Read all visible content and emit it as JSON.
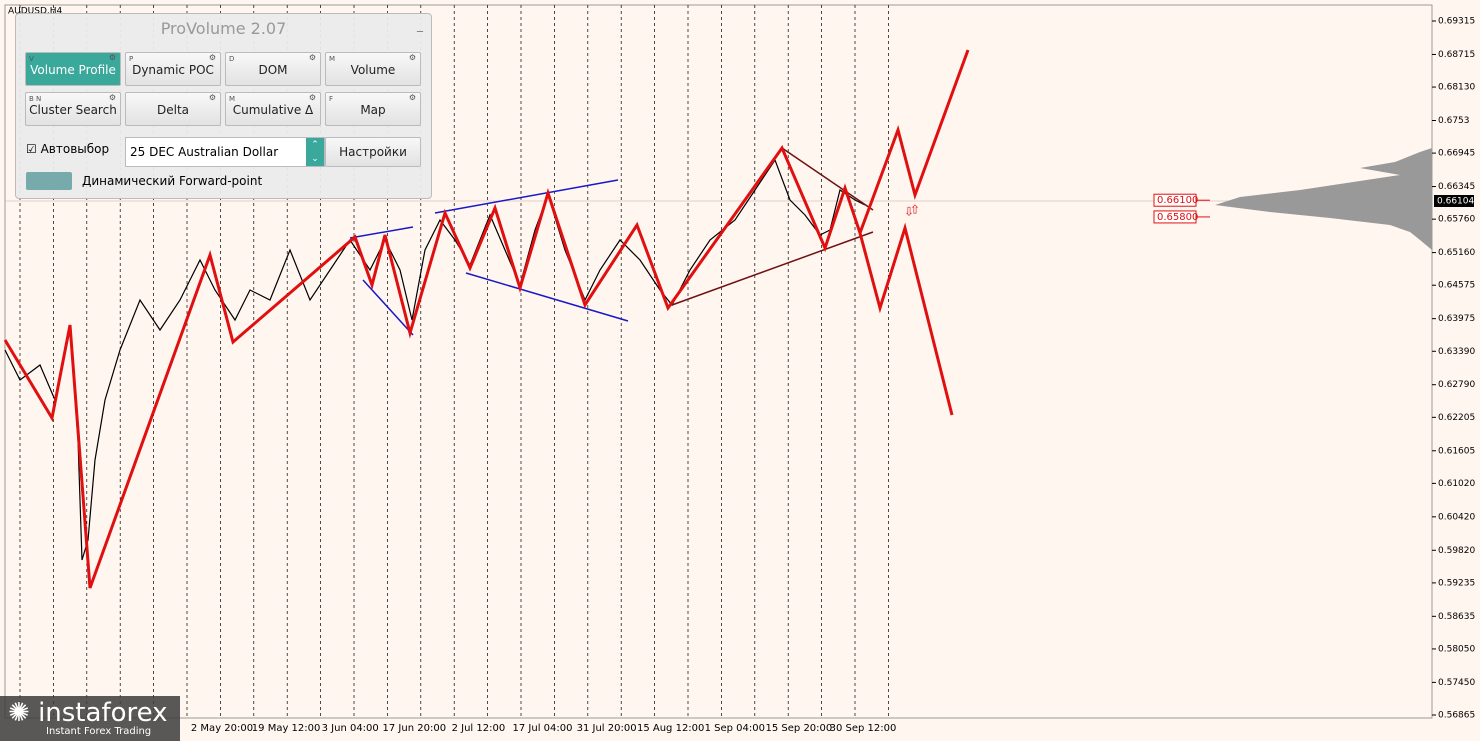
{
  "chart_data": {
    "type": "line",
    "symbol": "AUDUSD,H4",
    "ylim": [
      0.56811,
      0.69602
    ],
    "yticks": [
      0.69315,
      0.68715,
      {
        "value": 0.6813,
        "label": "0.68130"
      },
      0.6753,
      0.66945,
      0.66345,
      {
        "value": 0.6576,
        "label": "0.65760"
      },
      {
        "value": 0.6516,
        "label": "0.65160"
      },
      0.64575,
      0.63975,
      {
        "value": 0.6339,
        "label": "0.63390"
      },
      {
        "value": 0.6279,
        "label": "0.62790"
      },
      0.62205,
      0.61605,
      {
        "value": 0.6102,
        "label": "0.61020"
      },
      {
        "value": 0.6042,
        "label": "0.60420"
      },
      {
        "value": 0.5982,
        "label": "0.59820"
      },
      0.59235,
      0.58635,
      {
        "value": 0.5805,
        "label": "0.58050"
      },
      {
        "value": 0.5745,
        "label": "0.57450"
      },
      0.56865
    ],
    "categories": [
      "2 May 20:00",
      "19 May 12:00",
      "3 Jun 04:00",
      "17 Jun 20:00",
      "2 Jul 12:00",
      "17 Jul 04:00",
      "31 Jul 20:00",
      "15 Aug 12:00",
      "1 Sep 04:00",
      "15 Sep 20:00",
      "30 Sep 12:00"
    ],
    "current_price": {
      "value": 0.66104,
      "label": "0.66104"
    },
    "levels": [
      {
        "value": 0.661,
        "label": "0.66100"
      },
      {
        "value": 0.658,
        "label": "0.65800"
      }
    ]
  },
  "panel": {
    "title": "ProVolume 2.07",
    "buttons": [
      {
        "key": "V",
        "label": "Volume Profile"
      },
      {
        "key": "P",
        "label": "Dynamic POC"
      },
      {
        "key": "D",
        "label": "DOM"
      },
      {
        "key": "M",
        "label": "Volume"
      },
      {
        "key": "B N",
        "label": "Cluster Search"
      },
      {
        "key": "",
        "label": "Delta"
      },
      {
        "key": "M",
        "label": "Cumulative Δ"
      },
      {
        "key": "F",
        "label": "Map"
      }
    ],
    "autoselect": "Автовыбор",
    "instrument": "25 DEC Australian Dollar",
    "settings": "Настройки",
    "forward": "Динамический Forward-point"
  },
  "logo": {
    "name": "instaforex",
    "tagline": "Instant Forex Trading"
  }
}
